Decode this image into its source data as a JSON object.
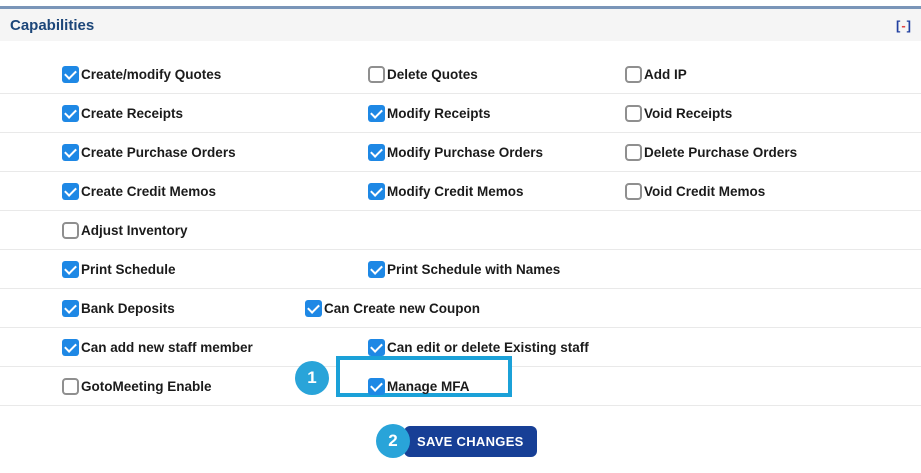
{
  "panel": {
    "title": "Capabilities",
    "collapse": {
      "open_bracket": "[",
      "dash": "-",
      "close_bracket": "]"
    }
  },
  "colors": {
    "accent_teal": "#29a4d9",
    "highlight_border": "#1ba1d8",
    "button_blue": "#173f96",
    "checkbox_blue": "#1e88e5",
    "header_text": "#1c4679",
    "top_rule": "#7a95b8"
  },
  "capabilities": {
    "rows": [
      {
        "items": [
          {
            "label": "Create/modify Quotes",
            "checked": true,
            "col": "c1"
          },
          {
            "label": "Delete Quotes",
            "checked": false,
            "col": "c2"
          },
          {
            "label": "Add IP",
            "checked": false,
            "col": "c3"
          }
        ]
      },
      {
        "items": [
          {
            "label": "Create Receipts",
            "checked": true,
            "col": "c1"
          },
          {
            "label": "Modify Receipts",
            "checked": true,
            "col": "c2"
          },
          {
            "label": "Void Receipts",
            "checked": false,
            "col": "c3"
          }
        ]
      },
      {
        "items": [
          {
            "label": "Create Purchase Orders",
            "checked": true,
            "col": "c1"
          },
          {
            "label": "Modify Purchase Orders",
            "checked": true,
            "col": "c2"
          },
          {
            "label": "Delete Purchase Orders",
            "checked": false,
            "col": "c3"
          }
        ]
      },
      {
        "items": [
          {
            "label": "Create Credit Memos",
            "checked": true,
            "col": "c1"
          },
          {
            "label": "Modify Credit Memos",
            "checked": true,
            "col": "c2"
          },
          {
            "label": "Void Credit Memos",
            "checked": false,
            "col": "c3"
          }
        ]
      },
      {
        "items": [
          {
            "label": "Adjust Inventory",
            "checked": false,
            "col": "c1"
          }
        ]
      },
      {
        "items": [
          {
            "label": "Print Schedule",
            "checked": true,
            "col": "c1"
          },
          {
            "label": "Print Schedule with Names",
            "checked": true,
            "col": "c2"
          }
        ]
      },
      {
        "items": [
          {
            "label": "Bank Deposits",
            "checked": true,
            "col": "c1"
          },
          {
            "label": "Can Create new Coupon",
            "checked": true,
            "col": "c2w"
          }
        ]
      },
      {
        "items": [
          {
            "label": "Can add new staff member",
            "checked": true,
            "col": "c1"
          },
          {
            "label": "Can edit or delete Existing staff",
            "checked": true,
            "col": "c2"
          }
        ]
      },
      {
        "items": [
          {
            "label": "GotoMeeting Enable",
            "checked": false,
            "col": "c1"
          },
          {
            "label": "Manage MFA",
            "checked": true,
            "col": "c2",
            "highlighted": true
          }
        ]
      }
    ]
  },
  "annotations": {
    "step1": "1",
    "step2": "2"
  },
  "footer": {
    "save_button_label": "SAVE CHANGES"
  }
}
